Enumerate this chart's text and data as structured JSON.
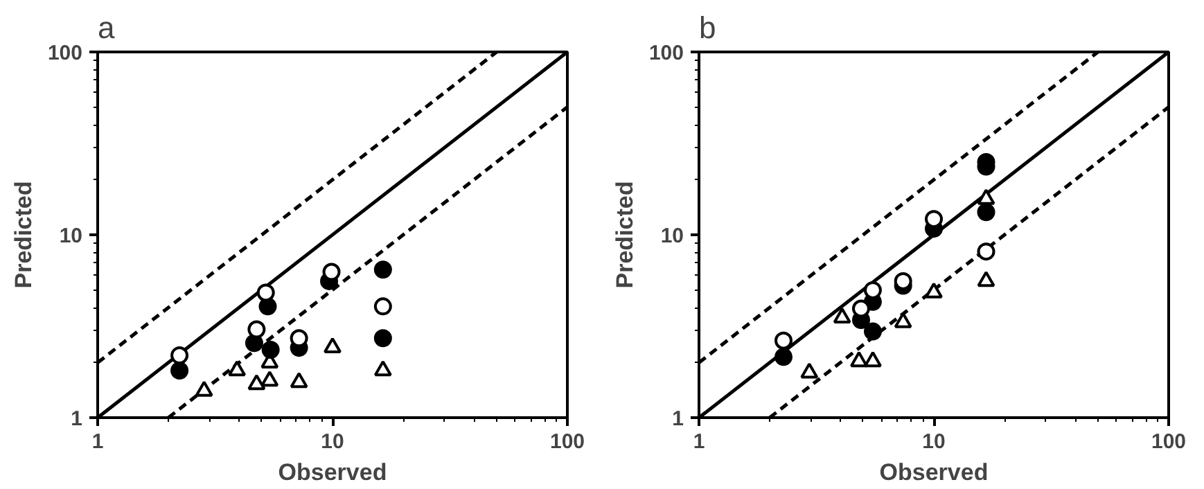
{
  "chart_data": [
    {
      "type": "scatter",
      "title": "a",
      "xlabel": "Observed",
      "ylabel": "Predicted",
      "log": "xy",
      "xlim": [
        1,
        100
      ],
      "ylim": [
        1,
        100
      ],
      "xticks": [
        1,
        10,
        100
      ],
      "yticks": [
        1,
        10,
        100
      ],
      "grid": false,
      "series": [
        {
          "type": "line",
          "line_style": "solid",
          "color": "#000000",
          "x": [
            1,
            100
          ],
          "values": [
            1,
            100
          ]
        },
        {
          "type": "line",
          "line_style": "dashed",
          "color": "#000000",
          "x": [
            1,
            50
          ],
          "values": [
            2,
            100
          ]
        },
        {
          "type": "line",
          "line_style": "dashed",
          "color": "#000000",
          "x": [
            2,
            100
          ],
          "values": [
            1,
            50
          ]
        },
        {
          "marker": "triangle",
          "color": "#ffffff",
          "x": [
            2.84,
            3.92,
            4.75,
            5.4,
            5.4,
            7.2,
            10,
            16.4
          ],
          "values": [
            1.4,
            1.81,
            1.52,
            1.59,
            2.0,
            1.56,
            2.42,
            1.81
          ]
        },
        {
          "marker": "circle",
          "color": "#000000",
          "x": [
            2.23,
            5.3,
            4.64,
            5.45,
            7.2,
            9.67,
            16.4,
            16.4
          ],
          "values": [
            1.81,
            4.06,
            2.56,
            2.35,
            2.41,
            5.58,
            6.45,
            2.72
          ]
        },
        {
          "marker": "circle",
          "color": "#ffffff",
          "x": [
            2.23,
            5.2,
            4.75,
            7.2,
            9.9,
            16.4
          ],
          "values": [
            2.19,
            4.83,
            3.04,
            2.72,
            6.27,
            4.06
          ]
        }
      ]
    },
    {
      "type": "scatter",
      "title": "b",
      "xlabel": "Observed",
      "ylabel": "Predicted",
      "log": "xy",
      "xlim": [
        1,
        100
      ],
      "ylim": [
        1,
        100
      ],
      "xticks": [
        1,
        10,
        100
      ],
      "yticks": [
        1,
        10,
        100
      ],
      "grid": false,
      "series": [
        {
          "type": "line",
          "line_style": "solid",
          "color": "#000000",
          "x": [
            1,
            100
          ],
          "values": [
            1,
            100
          ]
        },
        {
          "type": "line",
          "line_style": "dashed",
          "color": "#000000",
          "x": [
            1,
            50
          ],
          "values": [
            2,
            100
          ]
        },
        {
          "type": "line",
          "line_style": "dashed",
          "color": "#000000",
          "x": [
            2,
            100
          ],
          "values": [
            1,
            50
          ]
        },
        {
          "marker": "triangle",
          "color": "#ffffff",
          "x": [
            2.95,
            4.07,
            4.8,
            5.5,
            7.4,
            10,
            16.7,
            16.7
          ],
          "values": [
            1.76,
            3.52,
            2.03,
            2.03,
            3.32,
            4.83,
            5.58,
            15.7
          ]
        },
        {
          "marker": "circle",
          "color": "#000000",
          "x": [
            2.29,
            4.9,
            5.5,
            5.5,
            7.4,
            10,
            16.7,
            16.7,
            16.7
          ],
          "values": [
            2.15,
            3.42,
            4.3,
            2.96,
            5.27,
            10.8,
            25,
            23.6,
            13.3
          ]
        },
        {
          "marker": "circle",
          "color": "#ffffff",
          "x": [
            2.29,
            4.9,
            5.5,
            7.4,
            10,
            16.7
          ],
          "values": [
            2.64,
            3.95,
            4.98,
            5.58,
            12.2,
            8.1
          ]
        }
      ]
    }
  ]
}
